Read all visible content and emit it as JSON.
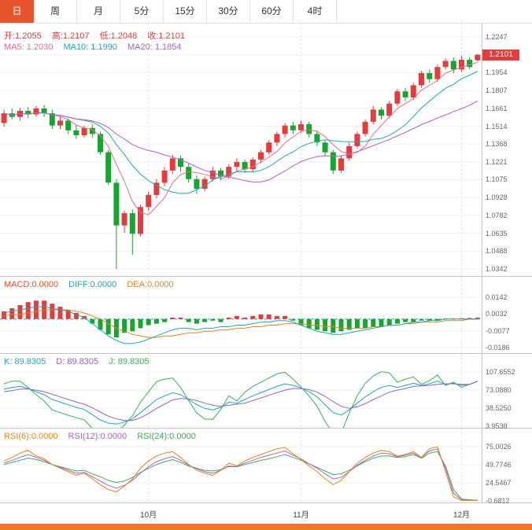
{
  "tabbar": {
    "tabs": [
      "日",
      "周",
      "月",
      "5分",
      "15分",
      "30分",
      "60分",
      "4时"
    ],
    "active": "日"
  },
  "main": {
    "ohlc": {
      "open": "开:1.2055",
      "high": "高:1.2107",
      "low": "低:1.2048",
      "close": "收:1.2101"
    },
    "ma_labels": [
      "MA5: 1.2030",
      "MA10: 1.1990",
      "MA20: 1.1854"
    ],
    "price_tag": "1.2101"
  },
  "macd": {
    "labels": [
      "MACD:0.0000",
      "DIFF:0.0000",
      "DEA:0.0000"
    ]
  },
  "kdj": {
    "labels": [
      "K: 89.8305",
      "D: 89.8305",
      "J: 89.8305"
    ]
  },
  "rsi": {
    "labels": [
      "RSI(6):0.0000",
      "RSI(12):0.0000",
      "RSI(24):0.0000"
    ]
  },
  "x_axis": [
    "10月",
    "11月",
    "12月"
  ],
  "colors": {
    "up": "#e43c3c",
    "down": "#17a52f",
    "ma5": "#e4708c",
    "ma10": "#1fa8b4",
    "ma20": "#b060c8",
    "diff": "#1fa8b4",
    "dea": "#e0861a",
    "macd_label": "#e4502a",
    "k": "#1fa8b4",
    "d": "#9a5fc8",
    "j": "#3cb054",
    "rsi6": "#e0861a",
    "rsi12": "#b060c8",
    "rsi24": "#3cb054",
    "tab_active": "#e8542c",
    "bottom_bar": "#ec7a28",
    "tag_bg": "#e43c3c"
  },
  "chart_data": [
    {
      "name": "main",
      "type": "candlestick",
      "title": "",
      "x_month_labels": [
        "10月",
        "11月",
        "12月"
      ],
      "month_indices": [
        18,
        37,
        57
      ],
      "ylim": [
        1.0342,
        1.2247
      ],
      "y_ticks": [
        "1.2247",
        "1.2101",
        "1.1954",
        "1.1807",
        "1.1661",
        "1.1514",
        "1.1368",
        "1.1221",
        "1.1075",
        "1.0928",
        "1.0782",
        "1.0635",
        "1.0488",
        "1.0342"
      ],
      "last_price": 1.2101,
      "ma_windows": [
        5,
        10,
        20
      ],
      "ma_current": {
        "MA5": 1.203,
        "MA10": 1.199,
        "MA20": 1.1854
      },
      "candles": [
        [
          1.154,
          1.165,
          1.151,
          1.162
        ],
        [
          1.162,
          1.166,
          1.157,
          1.159
        ],
        [
          1.159,
          1.1665,
          1.156,
          1.164
        ],
        [
          1.164,
          1.167,
          1.158,
          1.161
        ],
        [
          1.161,
          1.168,
          1.159,
          1.166
        ],
        [
          1.166,
          1.169,
          1.159,
          1.162
        ],
        [
          1.162,
          1.165,
          1.149,
          1.152
        ],
        [
          1.152,
          1.159,
          1.149,
          1.156
        ],
        [
          1.156,
          1.158,
          1.145,
          1.148
        ],
        [
          1.148,
          1.152,
          1.141,
          1.144
        ],
        [
          1.144,
          1.152,
          1.142,
          1.15
        ],
        [
          1.15,
          1.153,
          1.142,
          1.145
        ],
        [
          1.145,
          1.147,
          1.128,
          1.13
        ],
        [
          1.13,
          1.132,
          1.103,
          1.105
        ],
        [
          1.105,
          1.108,
          1.0342,
          1.07
        ],
        [
          1.07,
          1.082,
          1.064,
          1.08
        ],
        [
          1.08,
          1.083,
          1.0459,
          1.063
        ],
        [
          1.063,
          1.087,
          1.061,
          1.085
        ],
        [
          1.085,
          1.098,
          1.082,
          1.095
        ],
        [
          1.095,
          1.108,
          1.092,
          1.105
        ],
        [
          1.105,
          1.118,
          1.102,
          1.115
        ],
        [
          1.115,
          1.128,
          1.112,
          1.125
        ],
        [
          1.125,
          1.127,
          1.114,
          1.118
        ],
        [
          1.118,
          1.121,
          1.105,
          1.108
        ],
        [
          1.108,
          1.111,
          1.096,
          1.1
        ],
        [
          1.1,
          1.11,
          1.098,
          1.108
        ],
        [
          1.108,
          1.118,
          1.106,
          1.115
        ],
        [
          1.115,
          1.117,
          1.107,
          1.11
        ],
        [
          1.11,
          1.12,
          1.108,
          1.118
        ],
        [
          1.118,
          1.125,
          1.115,
          1.122
        ],
        [
          1.122,
          1.124,
          1.113,
          1.116
        ],
        [
          1.116,
          1.126,
          1.114,
          1.124
        ],
        [
          1.124,
          1.132,
          1.121,
          1.13
        ],
        [
          1.13,
          1.14,
          1.128,
          1.138
        ],
        [
          1.138,
          1.147,
          1.135,
          1.145
        ],
        [
          1.145,
          1.154,
          1.142,
          1.152
        ],
        [
          1.152,
          1.155,
          1.145,
          1.148
        ],
        [
          1.148,
          1.156,
          1.146,
          1.153
        ],
        [
          1.153,
          1.155,
          1.142,
          1.145
        ],
        [
          1.145,
          1.148,
          1.135,
          1.138
        ],
        [
          1.138,
          1.14,
          1.127,
          1.13
        ],
        [
          1.13,
          1.132,
          1.112,
          1.115
        ],
        [
          1.115,
          1.127,
          1.113,
          1.125
        ],
        [
          1.125,
          1.138,
          1.123,
          1.135
        ],
        [
          1.135,
          1.147,
          1.133,
          1.145
        ],
        [
          1.145,
          1.157,
          1.143,
          1.155
        ],
        [
          1.155,
          1.168,
          1.153,
          1.165
        ],
        [
          1.165,
          1.167,
          1.157,
          1.16
        ],
        [
          1.16,
          1.172,
          1.158,
          1.17
        ],
        [
          1.17,
          1.182,
          1.168,
          1.18
        ],
        [
          1.18,
          1.183,
          1.172,
          1.175
        ],
        [
          1.175,
          1.187,
          1.173,
          1.185
        ],
        [
          1.185,
          1.197,
          1.183,
          1.195
        ],
        [
          1.195,
          1.198,
          1.187,
          1.19
        ],
        [
          1.19,
          1.202,
          1.188,
          1.2
        ],
        [
          1.2,
          1.207,
          1.198,
          1.205
        ],
        [
          1.205,
          1.208,
          1.195,
          1.198
        ],
        [
          1.198,
          1.209,
          1.196,
          1.206
        ],
        [
          1.206,
          1.208,
          1.198,
          1.2
        ],
        [
          1.2055,
          1.2107,
          1.2048,
          1.2101
        ]
      ]
    },
    {
      "name": "macd",
      "type": "bar",
      "y_ticks": [
        "0.0142",
        "0.0032",
        "-0.0077",
        "-0.0186"
      ],
      "current": {
        "MACD": 0.0,
        "DIFF": 0.0,
        "DEA": 0.0
      },
      "histogram": [
        0.005,
        0.007,
        0.009,
        0.011,
        0.012,
        0.012,
        0.01,
        0.008,
        0.006,
        0.004,
        0.002,
        -0.003,
        -0.007,
        -0.01,
        -0.012,
        -0.009,
        -0.008,
        -0.006,
        -0.004,
        -0.003,
        -0.002,
        0.001,
        0.001,
        -0.002,
        -0.003,
        -0.002,
        -0.001,
        -0.002,
        0.001,
        0.002,
        0.001,
        0.002,
        0.003,
        0.003,
        0.002,
        0.002,
        -0.001,
        -0.004,
        -0.006,
        -0.007,
        -0.008,
        -0.009,
        -0.008,
        -0.007,
        -0.006,
        -0.006,
        -0.005,
        -0.005,
        -0.004,
        -0.003,
        -0.002,
        -0.002,
        -0.001,
        -0.001,
        -0.001,
        0.0003,
        0.0004,
        0.0005,
        0.0007,
        0.001
      ],
      "diff": [
        0.004,
        0.005,
        0.006,
        0.007,
        0.008,
        0.008,
        0.007,
        0.006,
        0.005,
        0.003,
        0.001,
        -0.003,
        -0.007,
        -0.011,
        -0.014,
        -0.016,
        -0.016,
        -0.015,
        -0.013,
        -0.011,
        -0.009,
        -0.007,
        -0.006,
        -0.006,
        -0.007,
        -0.006,
        -0.006,
        -0.005,
        -0.005,
        -0.004,
        -0.004,
        -0.003,
        -0.002,
        -0.002,
        -0.001,
        -0.001,
        -0.002,
        -0.004,
        -0.006,
        -0.008,
        -0.009,
        -0.01,
        -0.01,
        -0.009,
        -0.008,
        -0.007,
        -0.006,
        -0.005,
        -0.004,
        -0.004,
        -0.003,
        -0.002,
        -0.002,
        -0.001,
        -0.001,
        0.0,
        0.0,
        0.0,
        0.0,
        0.0
      ],
      "dea": [
        0.002,
        0.003,
        0.003,
        0.004,
        0.005,
        0.006,
        0.006,
        0.006,
        0.006,
        0.005,
        0.004,
        0.002,
        0.0,
        -0.003,
        -0.006,
        -0.008,
        -0.01,
        -0.011,
        -0.012,
        -0.012,
        -0.011,
        -0.011,
        -0.01,
        -0.009,
        -0.009,
        -0.008,
        -0.008,
        -0.007,
        -0.007,
        -0.006,
        -0.006,
        -0.005,
        -0.005,
        -0.004,
        -0.004,
        -0.003,
        -0.003,
        -0.003,
        -0.004,
        -0.004,
        -0.005,
        -0.005,
        -0.006,
        -0.006,
        -0.006,
        -0.006,
        -0.005,
        -0.005,
        -0.004,
        -0.004,
        -0.003,
        -0.003,
        -0.002,
        -0.002,
        -0.002,
        -0.001,
        -0.001,
        -0.001,
        0.0,
        0.0
      ]
    },
    {
      "name": "kdj",
      "type": "line",
      "y_ticks": [
        "107.6552",
        "73.0880",
        "38.5250",
        "3.9538"
      ],
      "current": {
        "K": 89.8305,
        "D": 89.8305,
        "J": 89.8305
      },
      "k": [
        75,
        78,
        80,
        76,
        70,
        64,
        55,
        50,
        45,
        40,
        36,
        26,
        16,
        10,
        8,
        12,
        18,
        30,
        42,
        55,
        62,
        68,
        64,
        55,
        45,
        38,
        35,
        40,
        50,
        48,
        55,
        62,
        68,
        74,
        80,
        85,
        82,
        77,
        70,
        60,
        45,
        30,
        25,
        35,
        48,
        60,
        70,
        78,
        82,
        78,
        82,
        86,
        82,
        85,
        90,
        84,
        86,
        82,
        84,
        89.83
      ],
      "d": [
        70,
        72,
        75,
        75,
        73,
        70,
        65,
        60,
        55,
        50,
        46,
        39,
        31,
        23,
        18,
        15,
        15,
        20,
        28,
        38,
        46,
        54,
        57,
        56,
        53,
        48,
        44,
        42,
        44,
        46,
        48,
        53,
        58,
        63,
        68,
        73,
        76,
        76,
        74,
        69,
        61,
        51,
        42,
        38,
        41,
        47,
        55,
        62,
        69,
        73,
        76,
        80,
        81,
        82,
        84,
        85,
        85,
        84,
        84,
        89.83
      ],
      "j": [
        85,
        90,
        90,
        78,
        64,
        52,
        35,
        30,
        25,
        20,
        16,
        0,
        -4,
        -10,
        -8,
        6,
        24,
        50,
        70,
        89,
        94,
        96,
        78,
        53,
        29,
        18,
        17,
        36,
        62,
        52,
        69,
        80,
        88,
        96,
        104,
        107,
        94,
        79,
        62,
        42,
        13,
        -10,
        -9,
        29,
        62,
        86,
        100,
        108,
        106,
        88,
        94,
        98,
        84,
        91,
        102,
        82,
        88,
        78,
        84,
        89.83
      ]
    },
    {
      "name": "rsi",
      "type": "line",
      "y_ticks": [
        "75.0026",
        "49.7746",
        "24.5467",
        "-0.6812"
      ],
      "current": {
        "RSI6": 0.0,
        "RSI12": 0.0,
        "RSI24": 0.0
      },
      "rsi6": [
        55,
        60,
        66,
        70,
        62,
        58,
        50,
        45,
        40,
        35,
        38,
        30,
        22,
        15,
        12,
        20,
        30,
        45,
        55,
        62,
        66,
        68,
        60,
        50,
        42,
        38,
        35,
        42,
        52,
        48,
        55,
        60,
        64,
        68,
        72,
        74,
        65,
        57,
        48,
        40,
        30,
        22,
        28,
        40,
        52,
        60,
        66,
        70,
        68,
        62,
        64,
        68,
        60,
        72,
        75,
        40,
        5,
        0,
        0,
        0
      ],
      "rsi12": [
        52,
        56,
        60,
        64,
        60,
        56,
        50,
        46,
        42,
        38,
        39,
        33,
        27,
        21,
        17,
        21,
        28,
        38,
        47,
        54,
        58,
        61,
        56,
        49,
        44,
        40,
        38,
        42,
        48,
        47,
        52,
        56,
        60,
        63,
        66,
        69,
        63,
        58,
        51,
        45,
        37,
        30,
        32,
        40,
        49,
        56,
        62,
        66,
        65,
        61,
        63,
        66,
        60,
        69,
        72,
        45,
        10,
        1,
        0,
        0
      ],
      "rsi24": [
        50,
        53,
        56,
        59,
        57,
        54,
        50,
        47,
        44,
        41,
        42,
        37,
        33,
        28,
        25,
        27,
        32,
        39,
        45,
        50,
        54,
        57,
        53,
        48,
        45,
        42,
        41,
        43,
        47,
        47,
        50,
        53,
        56,
        58,
        61,
        64,
        60,
        56,
        51,
        46,
        41,
        36,
        37,
        42,
        48,
        54,
        59,
        62,
        62,
        60,
        61,
        64,
        59,
        66,
        68,
        48,
        15,
        2,
        1,
        0
      ]
    }
  ]
}
